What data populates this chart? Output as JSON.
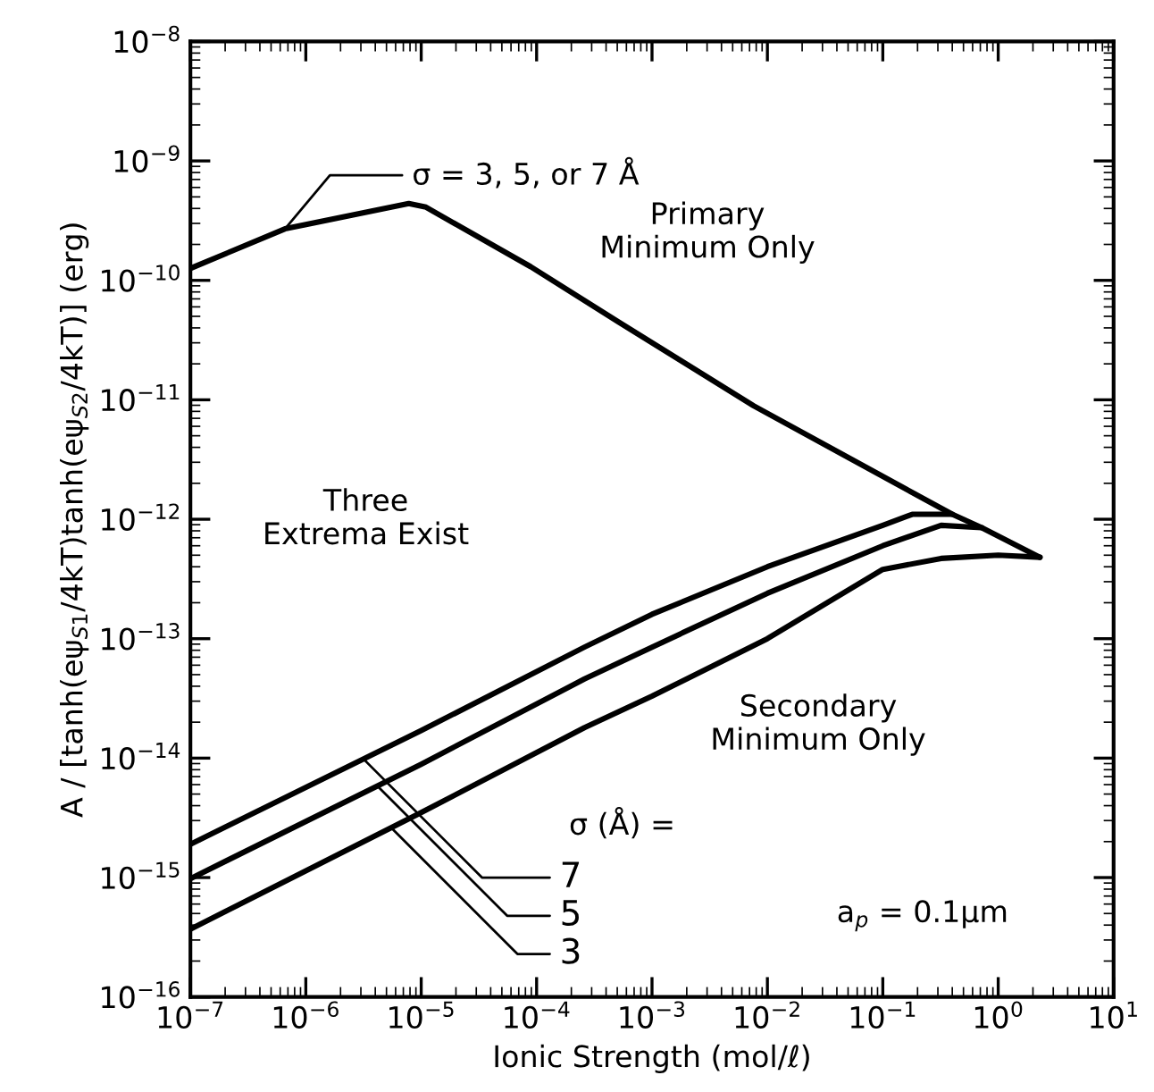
{
  "chart_data": {
    "type": "line",
    "xlabel": "Ionic Strength (mol/ℓ)",
    "ylabel": "A / [tanh(eψ$_{S1}$/4kT)tanh(eψ$_{S2}$/4kT)] (erg)",
    "log": "xy",
    "grid": false,
    "legend": false,
    "marker": "none",
    "line_style": "solid",
    "xlim": [
      1e-07,
      10
    ],
    "ylim": [
      1e-16,
      1e-08
    ],
    "xticks": [
      {
        "value": 1e-07,
        "label": "10$^{−7}$"
      },
      {
        "value": 1e-06,
        "label": "10$^{−6}$"
      },
      {
        "value": 1e-05,
        "label": "10$^{−5}$"
      },
      {
        "value": 0.0001,
        "label": "10$^{−4}$"
      },
      {
        "value": 0.001,
        "label": "10$^{−3}$"
      },
      {
        "value": 0.01,
        "label": "10$^{−2}$"
      },
      {
        "value": 0.1,
        "label": "10$^{−1}$"
      },
      {
        "value": 1,
        "label": "10$^{0}$"
      },
      {
        "value": 10,
        "label": "10$^{1}$"
      }
    ],
    "yticks": [
      {
        "value": 1e-16,
        "label": "10$^{−16}$"
      },
      {
        "value": 1e-15,
        "label": "10$^{−15}$"
      },
      {
        "value": 1e-14,
        "label": "10$^{−14}$"
      },
      {
        "value": 1e-13,
        "label": "10$^{−13}$"
      },
      {
        "value": 1e-12,
        "label": "10$^{−12}$"
      },
      {
        "value": 1e-11,
        "label": "10$^{−11}$"
      },
      {
        "value": 1e-10,
        "label": "10$^{−10}$"
      },
      {
        "value": 1e-09,
        "label": "10$^{−9}$"
      },
      {
        "value": 1e-08,
        "label": "10$^{−8}$"
      }
    ],
    "series": [
      {
        "name": "σ = 3, 5, or 7 Å",
        "color": "#000000",
        "x": [
          1e-07,
          6.6e-07,
          7.8e-06,
          1.1e-05,
          8.9e-05,
          0.00051,
          0.0076,
          0.4,
          0.72,
          2.3
        ],
        "values": [
          1.26e-10,
          2.7e-10,
          4.4e-10,
          4.1e-10,
          1.3e-10,
          4.5e-11,
          8.9e-12,
          1.1e-12,
          8.5e-13,
          4.8e-13
        ]
      },
      {
        "name": "7",
        "color": "#000000",
        "x": [
          1e-07,
          1e-05,
          0.00026,
          0.001,
          0.01,
          0.1,
          0.18,
          0.4
        ],
        "values": [
          1.9e-15,
          1.7e-14,
          8.5e-14,
          1.6e-13,
          4e-13,
          8.9e-13,
          1.1e-12,
          1.1e-12
        ]
      },
      {
        "name": "5",
        "color": "#000000",
        "x": [
          1e-07,
          1e-05,
          0.00026,
          0.001,
          0.01,
          0.1,
          0.32,
          0.72
        ],
        "values": [
          9.8e-16,
          8.9e-15,
          4.6e-14,
          8.5e-14,
          2.4e-13,
          6e-13,
          8.9e-13,
          8.5e-13
        ]
      },
      {
        "name": "3",
        "color": "#000000",
        "x": [
          1e-07,
          1e-05,
          0.00026,
          0.001,
          0.01,
          0.1,
          0.32,
          1,
          2.3
        ],
        "values": [
          3.7e-16,
          3.5e-15,
          1.8e-14,
          3.3e-14,
          1e-13,
          3.8e-13,
          4.7e-13,
          5e-13,
          4.8e-13
        ]
      }
    ],
    "annotations": [
      "Three\nExtrema Exist",
      "Primary\nMinimum Only",
      "Secondary\nMinimum Only",
      "σ (Å) =",
      "a$_{p}$ = 0.1μm"
    ]
  }
}
